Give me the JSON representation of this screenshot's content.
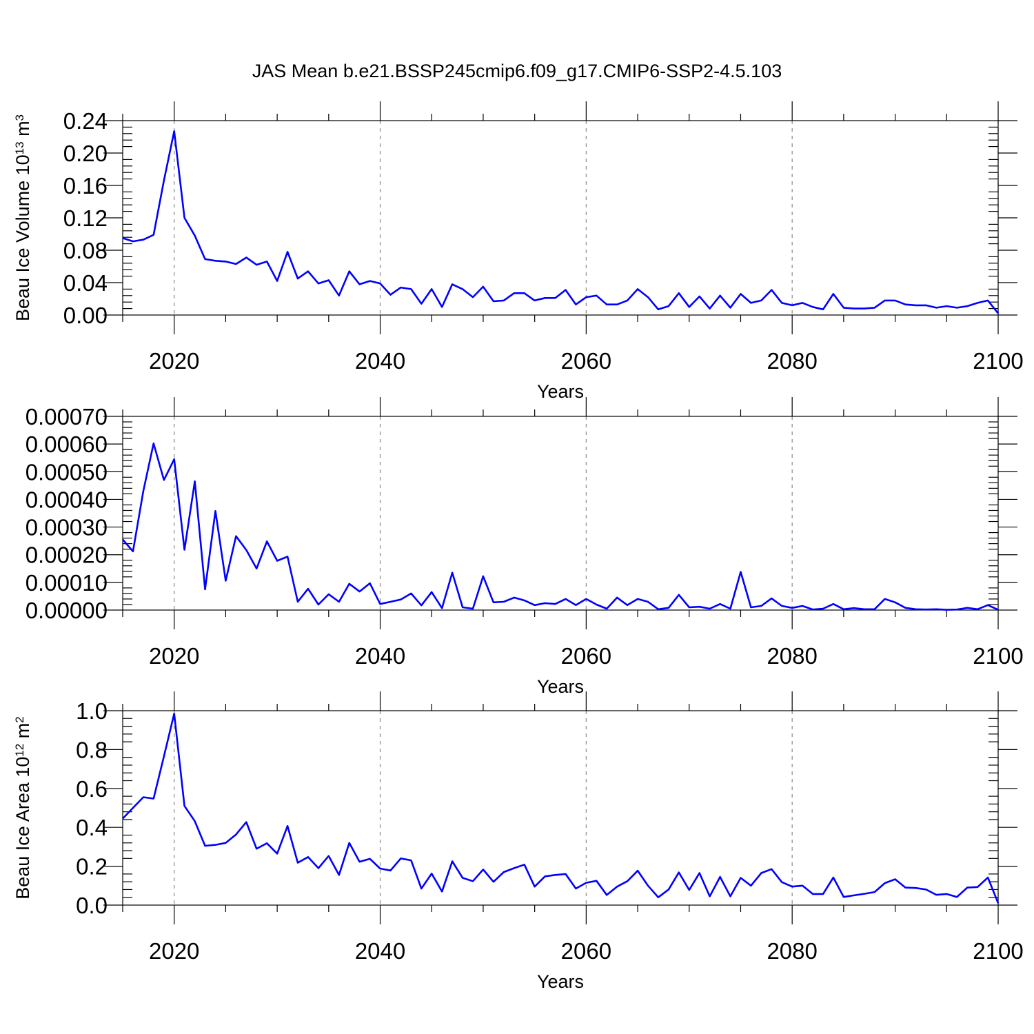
{
  "title": "JAS Mean b.e21.BSSP245cmip6.f09_g17.CMIP6-SSP2-4.5.103",
  "line_color": "#0000ff",
  "chart_data": [
    {
      "type": "line",
      "title": "JAS Mean b.e21.BSSP245cmip6.f09_g17.CMIP6-SSP2-4.5.103",
      "xlabel": "Years",
      "ylabel": {
        "main": "Beau Ice Volume 10",
        "sup": "13",
        "unit": " m",
        "unit_sup": "3"
      },
      "xlim": [
        2015,
        2100
      ],
      "ylim": [
        0,
        0.24
      ],
      "xticks": [
        "2020",
        "2040",
        "2060",
        "2080",
        "2100"
      ],
      "yticks": [
        "0.00",
        "0.04",
        "0.08",
        "0.12",
        "0.16",
        "0.20",
        "0.24"
      ],
      "grid": "vertical dashed at major x ticks",
      "x": [
        2015,
        2016,
        2017,
        2018,
        2019,
        2020,
        2021,
        2022,
        2023,
        2024,
        2025,
        2026,
        2027,
        2028,
        2029,
        2030,
        2031,
        2032,
        2033,
        2034,
        2035,
        2036,
        2037,
        2038,
        2039,
        2040,
        2041,
        2042,
        2043,
        2044,
        2045,
        2046,
        2047,
        2048,
        2049,
        2050,
        2051,
        2052,
        2053,
        2054,
        2055,
        2056,
        2057,
        2058,
        2059,
        2060,
        2061,
        2062,
        2063,
        2064,
        2065,
        2066,
        2067,
        2068,
        2069,
        2070,
        2071,
        2072,
        2073,
        2074,
        2075,
        2076,
        2077,
        2078,
        2079,
        2080,
        2081,
        2082,
        2083,
        2084,
        2085,
        2086,
        2087,
        2088,
        2089,
        2090,
        2091,
        2092,
        2093,
        2094,
        2095,
        2096,
        2097,
        2098,
        2099,
        2100
      ],
      "series": [
        {
          "values": [
            0.095,
            0.091,
            0.093,
            0.099,
            0.166,
            0.227,
            0.12,
            0.098,
            0.069,
            0.067,
            0.066,
            0.063,
            0.071,
            0.062,
            0.066,
            0.042,
            0.078,
            0.045,
            0.054,
            0.039,
            0.043,
            0.024,
            0.054,
            0.038,
            0.042,
            0.039,
            0.025,
            0.034,
            0.032,
            0.014,
            0.032,
            0.01,
            0.038,
            0.032,
            0.022,
            0.035,
            0.017,
            0.018,
            0.027,
            0.027,
            0.018,
            0.021,
            0.021,
            0.031,
            0.013,
            0.022,
            0.024,
            0.013,
            0.013,
            0.018,
            0.032,
            0.022,
            0.007,
            0.011,
            0.027,
            0.01,
            0.023,
            0.008,
            0.024,
            0.009,
            0.026,
            0.015,
            0.018,
            0.031,
            0.015,
            0.012,
            0.015,
            0.01,
            0.007,
            0.026,
            0.009,
            0.008,
            0.008,
            0.009,
            0.018,
            0.018,
            0.013,
            0.012,
            0.012,
            0.009,
            0.011,
            0.009,
            0.011,
            0.015,
            0.018,
            0.002
          ]
        }
      ]
    },
    {
      "type": "line",
      "xlabel": "Years",
      "ylabel": "",
      "xlim": [
        2015,
        2100
      ],
      "ylim": [
        0,
        0.0007
      ],
      "xticks": [
        "2020",
        "2040",
        "2060",
        "2080",
        "2100"
      ],
      "yticks": [
        "0.00000",
        "0.00010",
        "0.00020",
        "0.00030",
        "0.00040",
        "0.00050",
        "0.00060",
        "0.00070"
      ],
      "grid": "vertical dashed at major x ticks",
      "x": [
        2015,
        2016,
        2017,
        2018,
        2019,
        2020,
        2021,
        2022,
        2023,
        2024,
        2025,
        2026,
        2027,
        2028,
        2029,
        2030,
        2031,
        2032,
        2033,
        2034,
        2035,
        2036,
        2037,
        2038,
        2039,
        2040,
        2041,
        2042,
        2043,
        2044,
        2045,
        2046,
        2047,
        2048,
        2049,
        2050,
        2051,
        2052,
        2053,
        2054,
        2055,
        2056,
        2057,
        2058,
        2059,
        2060,
        2061,
        2062,
        2063,
        2064,
        2065,
        2066,
        2067,
        2068,
        2069,
        2070,
        2071,
        2072,
        2073,
        2074,
        2075,
        2076,
        2077,
        2078,
        2079,
        2080,
        2081,
        2082,
        2083,
        2084,
        2085,
        2086,
        2087,
        2088,
        2089,
        2090,
        2091,
        2092,
        2093,
        2094,
        2095,
        2096,
        2097,
        2098,
        2099,
        2100
      ],
      "series": [
        {
          "values": [
            0.000255,
            0.000212,
            0.00043,
            0.000602,
            0.00047,
            0.000545,
            0.000218,
            0.000465,
            7.5e-05,
            0.000358,
            0.000106,
            0.000267,
            0.000217,
            0.00015,
            0.000248,
            0.000178,
            0.000193,
            3e-05,
            7.7e-05,
            2e-05,
            5.7e-05,
            3e-05,
            9.5e-05,
            6.7e-05,
            9.7e-05,
            2.2e-05,
            3e-05,
            3.8e-05,
            6e-05,
            1.7e-05,
            6.5e-05,
            7e-06,
            0.000135,
            1e-05,
            5e-06,
            0.000122,
            2.8e-05,
            3e-05,
            4.5e-05,
            3.5e-05,
            1.8e-05,
            2.5e-05,
            2.2e-05,
            4e-05,
            1.8e-05,
            4e-05,
            2e-05,
            5e-06,
            4.5e-05,
            1.8e-05,
            4e-05,
            3e-05,
            3e-06,
            8e-06,
            5.5e-05,
            1e-05,
            1.2e-05,
            5e-06,
            2.2e-05,
            5e-06,
            0.000138,
            1e-05,
            1.5e-05,
            4.2e-05,
            1.5e-05,
            8e-06,
            1.5e-05,
            2e-06,
            5e-06,
            2.2e-05,
            3e-06,
            7e-06,
            3e-06,
            3e-06,
            4e-05,
            2.8e-05,
            8e-06,
            3e-06,
            2e-06,
            3e-06,
            1e-06,
            2e-06,
            8e-06,
            3e-06,
            1.8e-05,
            1e-06
          ]
        }
      ]
    },
    {
      "type": "line",
      "xlabel": "Years",
      "ylabel": {
        "main": "Beau Ice Area 10",
        "sup": "12",
        "unit": " m",
        "unit_sup": "2"
      },
      "xlim": [
        2015,
        2100
      ],
      "ylim": [
        0,
        1.0
      ],
      "xticks": [
        "2020",
        "2040",
        "2060",
        "2080",
        "2100"
      ],
      "yticks": [
        "0.0",
        "0.2",
        "0.4",
        "0.6",
        "0.8",
        "1.0"
      ],
      "grid": "vertical dashed at major x ticks",
      "x": [
        2015,
        2016,
        2017,
        2018,
        2019,
        2020,
        2021,
        2022,
        2023,
        2024,
        2025,
        2026,
        2027,
        2028,
        2029,
        2030,
        2031,
        2032,
        2033,
        2034,
        2035,
        2036,
        2037,
        2038,
        2039,
        2040,
        2041,
        2042,
        2043,
        2044,
        2045,
        2046,
        2047,
        2048,
        2049,
        2050,
        2051,
        2052,
        2053,
        2054,
        2055,
        2056,
        2057,
        2058,
        2059,
        2060,
        2061,
        2062,
        2063,
        2064,
        2065,
        2066,
        2067,
        2068,
        2069,
        2070,
        2071,
        2072,
        2073,
        2074,
        2075,
        2076,
        2077,
        2078,
        2079,
        2080,
        2081,
        2082,
        2083,
        2084,
        2085,
        2086,
        2087,
        2088,
        2089,
        2090,
        2091,
        2092,
        2093,
        2094,
        2095,
        2096,
        2097,
        2098,
        2099,
        2100
      ],
      "series": [
        {
          "values": [
            0.445,
            0.5,
            0.555,
            0.548,
            0.765,
            0.985,
            0.51,
            0.432,
            0.305,
            0.31,
            0.32,
            0.363,
            0.427,
            0.29,
            0.318,
            0.265,
            0.407,
            0.218,
            0.247,
            0.19,
            0.253,
            0.155,
            0.32,
            0.223,
            0.238,
            0.188,
            0.178,
            0.24,
            0.23,
            0.085,
            0.162,
            0.07,
            0.225,
            0.14,
            0.123,
            0.183,
            0.12,
            0.17,
            0.19,
            0.208,
            0.095,
            0.148,
            0.155,
            0.16,
            0.085,
            0.115,
            0.125,
            0.052,
            0.095,
            0.123,
            0.177,
            0.1,
            0.04,
            0.08,
            0.168,
            0.078,
            0.165,
            0.045,
            0.145,
            0.045,
            0.14,
            0.1,
            0.165,
            0.185,
            0.118,
            0.095,
            0.1,
            0.057,
            0.057,
            0.142,
            0.042,
            0.05,
            0.058,
            0.067,
            0.113,
            0.133,
            0.09,
            0.088,
            0.08,
            0.053,
            0.057,
            0.042,
            0.09,
            0.093,
            0.142,
            0.01
          ]
        }
      ]
    }
  ]
}
